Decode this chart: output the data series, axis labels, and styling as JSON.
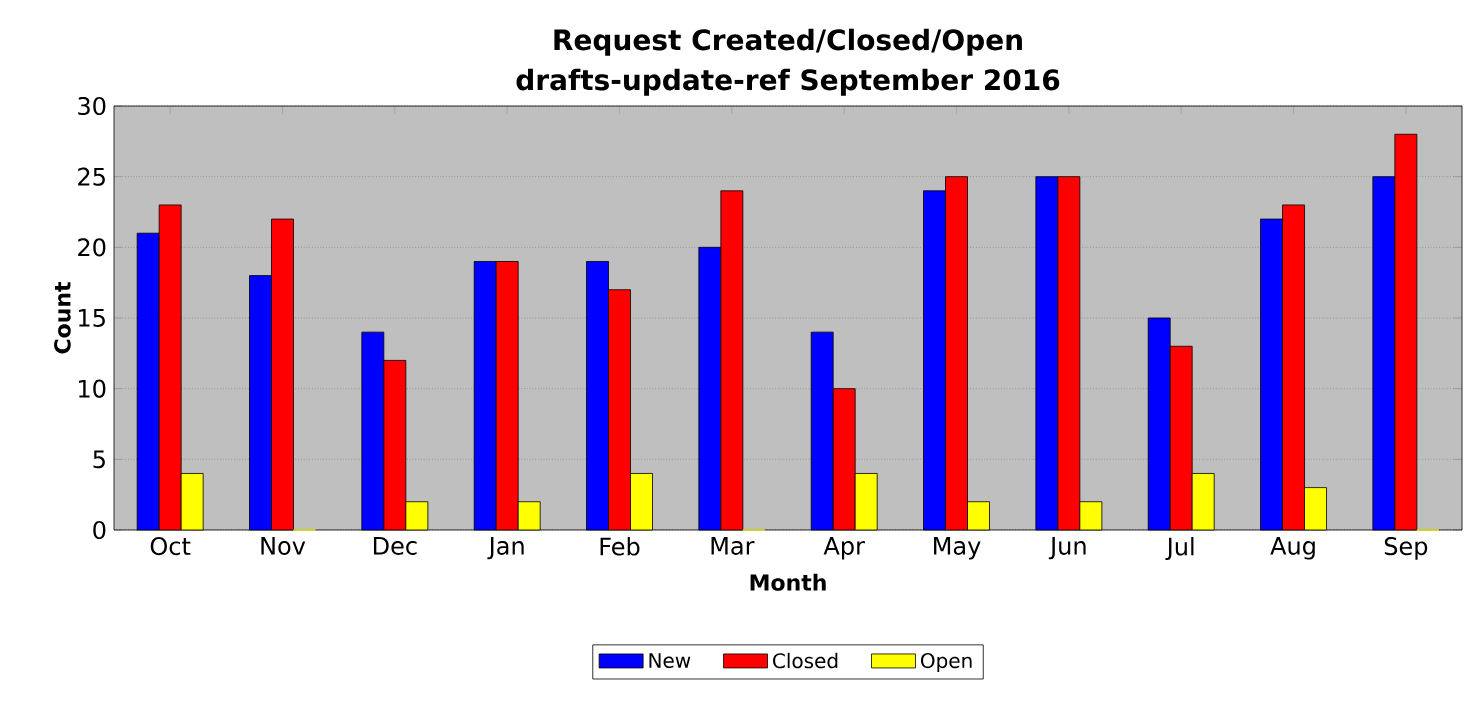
{
  "chart_data": {
    "type": "bar",
    "title": "Request Created/Closed/Open",
    "subtitle": "drafts-update-ref September 2016",
    "xlabel": "Month",
    "ylabel": "Count",
    "categories": [
      "Oct",
      "Nov",
      "Dec",
      "Jan",
      "Feb",
      "Mar",
      "Apr",
      "May",
      "Jun",
      "Jul",
      "Aug",
      "Sep"
    ],
    "series": [
      {
        "name": "New",
        "color": "#0000ff",
        "values": [
          21,
          18,
          14,
          19,
          19,
          20,
          14,
          24,
          25,
          15,
          22,
          25
        ]
      },
      {
        "name": "Closed",
        "color": "#ff0000",
        "values": [
          23,
          22,
          12,
          19,
          17,
          24,
          10,
          25,
          25,
          13,
          23,
          28
        ]
      },
      {
        "name": "Open",
        "color": "#ffff00",
        "values": [
          4,
          0,
          2,
          2,
          4,
          0,
          4,
          2,
          2,
          4,
          3,
          0
        ]
      }
    ],
    "ylim": [
      0,
      30
    ],
    "yticks": [
      0,
      5,
      10,
      15,
      20,
      25,
      30
    ],
    "grid": "y",
    "legend": "bottom"
  }
}
